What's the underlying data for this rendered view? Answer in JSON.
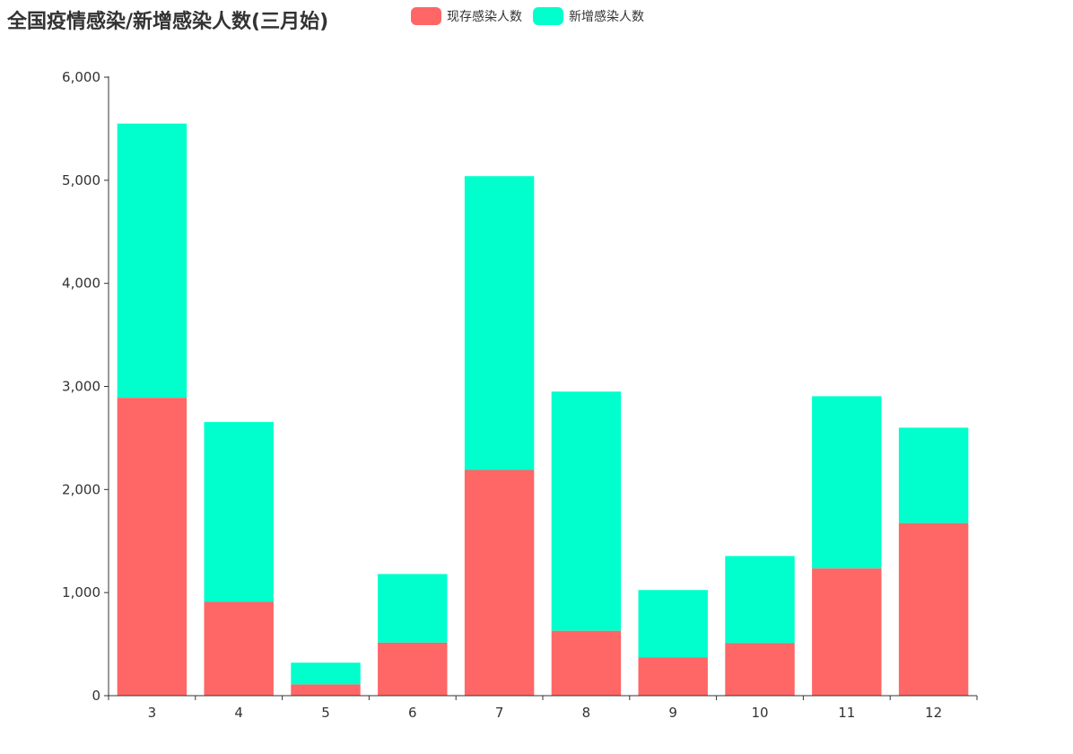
{
  "chart_data": {
    "type": "bar",
    "stacked": true,
    "title": "全国疫情感染/新增感染人数(三月始)",
    "categories": [
      "3",
      "4",
      "5",
      "6",
      "7",
      "8",
      "9",
      "10",
      "11",
      "12"
    ],
    "series": [
      {
        "name": "现存感染人数",
        "color": "#ff6666",
        "values": [
          2890,
          910,
          110,
          515,
          2190,
          630,
          370,
          510,
          1235,
          1675
        ]
      },
      {
        "name": "新增感染人数",
        "color": "#00ffcc",
        "values": [
          2660,
          1745,
          210,
          665,
          2850,
          2320,
          655,
          845,
          1670,
          925
        ]
      }
    ],
    "ylim": [
      0,
      6000
    ],
    "yticks": [
      0,
      1000,
      2000,
      3000,
      4000,
      5000,
      6000
    ],
    "ytick_labels": [
      "0",
      "1,000",
      "2,000",
      "3,000",
      "4,000",
      "5,000",
      "6,000"
    ],
    "legend_position": "top",
    "grid": false
  }
}
